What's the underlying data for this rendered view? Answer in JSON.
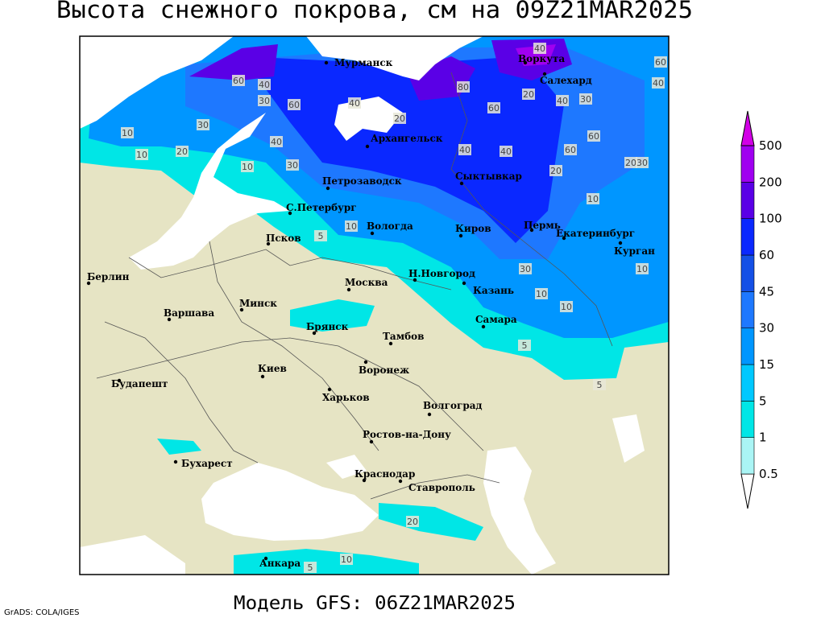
{
  "title": "Высота снежного покрова, см на 09Z21MAR2025",
  "subtitle": "Модель GFS: 06Z21MAR2025",
  "credit": "GrADS: COLA/IGES",
  "legend": {
    "levels": [
      0.5,
      1,
      5,
      15,
      30,
      45,
      60,
      100,
      200,
      500
    ],
    "colors": [
      "#ffffff",
      "#aaf5f5",
      "#00e6e6",
      "#00c8ff",
      "#0096ff",
      "#1e78ff",
      "#1450e6",
      "#0a28ff",
      "#5a00e6",
      "#a000f0",
      "#d200e6"
    ]
  },
  "cities": [
    "Мурманск",
    "Воркута",
    "Салехард",
    "Архангельск",
    "Сыктывкар",
    "Петрозаводск",
    "С.Петербург",
    "Вологда",
    "Киров",
    "Пермь",
    "Екатеринбург",
    "Курган",
    "Псков",
    "Берлин",
    "Н.Новгород",
    "Казань",
    "Москва",
    "Минск",
    "Варшава",
    "Самара",
    "Брянск",
    "Тамбов",
    "Киев",
    "Воронеж",
    "Будапешт",
    "Харьков",
    "Волгоград",
    "Ростов-на-Дону",
    "Бухарест",
    "Краснодар",
    "Ставрополь",
    "Анкара"
  ],
  "contour_labels": [
    40,
    60,
    40,
    80,
    60,
    40,
    30,
    60,
    40,
    20,
    60,
    20,
    40,
    30,
    10,
    30,
    20,
    10,
    40,
    30,
    40,
    40,
    60,
    60,
    20,
    20,
    30,
    10,
    10,
    10,
    5,
    10,
    10,
    10,
    30,
    5,
    5,
    20,
    10,
    5
  ]
}
